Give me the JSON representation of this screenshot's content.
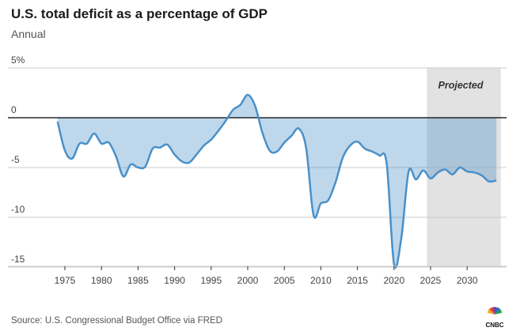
{
  "title": "U.S. total deficit as a percentage of GDP",
  "subtitle": "Annual",
  "source": "Source: U.S. Congressional Budget Office via FRED",
  "logo": "CNBC",
  "colors": {
    "line": "#4a90c8",
    "fill": "#4a90c8",
    "projected_shade": "#e2e2e2",
    "zero_line": "#000000",
    "grid": "#cccccc"
  },
  "chart_data": {
    "type": "area",
    "title": "U.S. total deficit as a percentage of GDP",
    "subtitle": "Annual",
    "xlabel": "",
    "ylabel": "",
    "ylim": [
      -15,
      5
    ],
    "xlim": [
      1974,
      2034
    ],
    "grid": true,
    "yticks": [
      {
        "v": 5,
        "label": "5%"
      },
      {
        "v": 0,
        "label": "0"
      },
      {
        "v": -5,
        "label": "-5"
      },
      {
        "v": -10,
        "label": "-10"
      },
      {
        "v": -15,
        "label": "-15"
      }
    ],
    "xticks": [
      1975,
      1980,
      1985,
      1990,
      1995,
      2000,
      2005,
      2010,
      2015,
      2020,
      2025,
      2030
    ],
    "annotation": {
      "label": "Projected",
      "from": 2024.5,
      "to": 2034.6
    },
    "x": [
      1974,
      1975,
      1976,
      1977,
      1978,
      1979,
      1980,
      1981,
      1982,
      1983,
      1984,
      1985,
      1986,
      1987,
      1988,
      1989,
      1990,
      1991,
      1992,
      1993,
      1994,
      1995,
      1996,
      1997,
      1998,
      1999,
      2000,
      2001,
      2002,
      2003,
      2004,
      2005,
      2006,
      2007,
      2008,
      2009,
      2010,
      2011,
      2012,
      2013,
      2014,
      2015,
      2016,
      2017,
      2018,
      2019,
      2020,
      2021,
      2022,
      2023,
      2024,
      2025,
      2026,
      2027,
      2028,
      2029,
      2030,
      2031,
      2032,
      2033,
      2034
    ],
    "values": [
      -0.4,
      -3.3,
      -4.1,
      -2.6,
      -2.6,
      -1.6,
      -2.6,
      -2.5,
      -3.9,
      -5.9,
      -4.7,
      -5.0,
      -4.9,
      -3.1,
      -3.0,
      -2.7,
      -3.7,
      -4.4,
      -4.5,
      -3.7,
      -2.8,
      -2.2,
      -1.3,
      -0.3,
      0.8,
      1.3,
      2.3,
      1.2,
      -1.5,
      -3.3,
      -3.4,
      -2.5,
      -1.8,
      -1.1,
      -3.1,
      -9.8,
      -8.6,
      -8.3,
      -6.5,
      -4.0,
      -2.8,
      -2.4,
      -3.1,
      -3.4,
      -3.8,
      -4.6,
      -14.7,
      -12.1,
      -5.4,
      -6.2,
      -5.3,
      -6.1,
      -5.5,
      -5.2,
      -5.7,
      -5.0,
      -5.4,
      -5.5,
      -5.8,
      -6.4,
      -6.3
    ]
  }
}
